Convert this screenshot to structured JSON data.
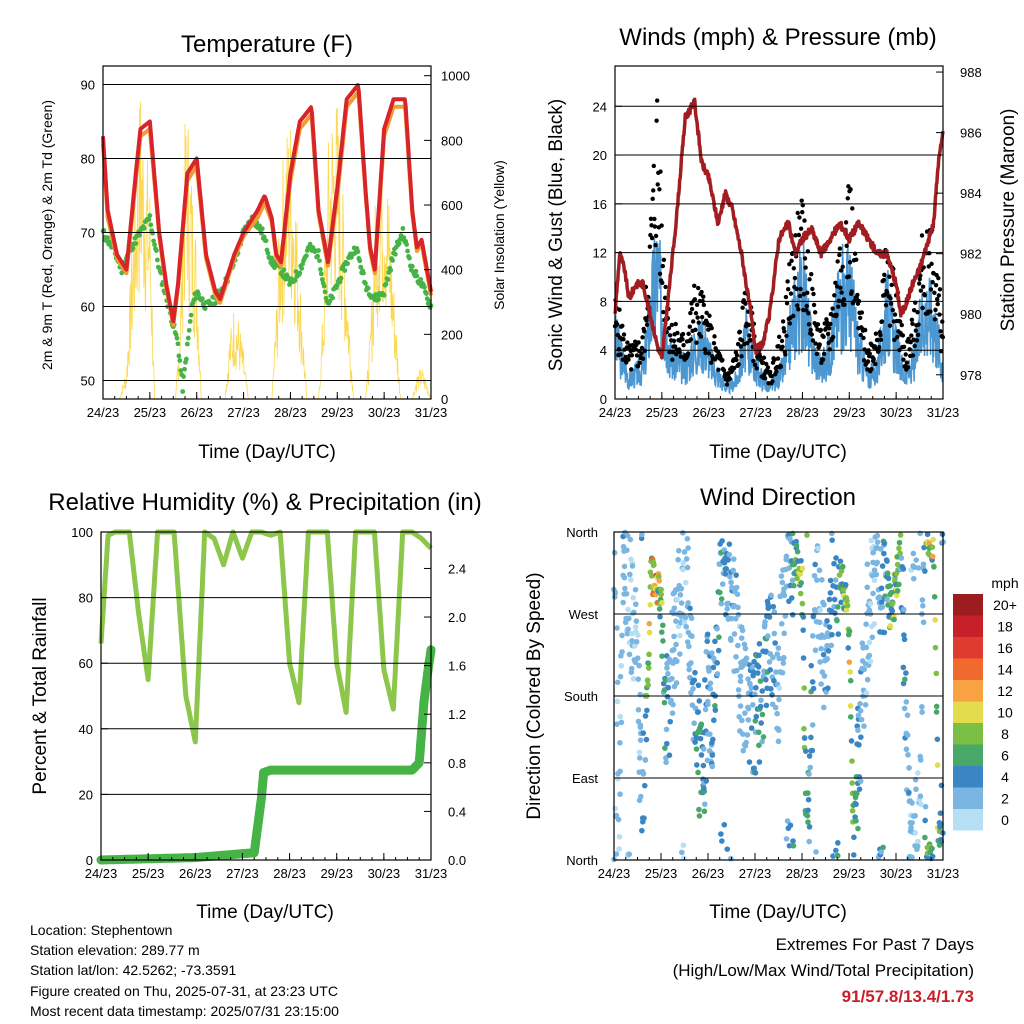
{
  "colors": {
    "temp2m": "#d9252a",
    "temp9m": "#f39a33",
    "dewpoint": "#46b346",
    "solar": "#fcd850",
    "wind": "#4b97d2",
    "gust": "#000000",
    "pressure": "#a11d21",
    "rh": "#8cc64b",
    "rain": "#46b346",
    "accent": "#c8202a"
  },
  "time_ticks": [
    "24/23",
    "25/23",
    "26/23",
    "27/23",
    "28/23",
    "29/23",
    "30/23",
    "31/23"
  ],
  "chart_data": [
    {
      "type": "line",
      "title": "Temperature (F)",
      "xlabel": "Time (Day/UTC)",
      "ylabel": "2m & 9m T (Red, Orange) & 2m Td (Green)",
      "y2label": "Solar Insolation (Yellow)",
      "x": [
        "24/23",
        "25/23",
        "26/23",
        "27/23",
        "28/23",
        "29/23",
        "30/23",
        "31/23"
      ],
      "ylim": [
        47.5,
        92.5
      ],
      "y2lim": [
        0,
        1030
      ],
      "yticks": [
        50,
        60,
        70,
        80,
        90
      ],
      "y2ticks": [
        0,
        200,
        400,
        600,
        800,
        1000
      ],
      "grid": true,
      "series": [
        {
          "name": "2m T",
          "x": [
            0,
            0.1,
            0.3,
            0.5,
            0.7,
            0.8,
            1.0,
            1.2,
            1.35,
            1.5,
            1.6,
            1.8,
            2.0,
            2.2,
            2.4,
            2.5,
            2.6,
            2.8,
            3.0,
            3.3,
            3.45,
            3.6,
            3.7,
            3.8,
            4.0,
            4.2,
            4.45,
            4.6,
            4.8,
            5.0,
            5.2,
            5.45,
            5.6,
            5.7,
            5.8,
            6.0,
            6.2,
            6.45,
            6.6,
            6.7,
            6.8,
            7.0
          ],
          "values": [
            83,
            73,
            67,
            65,
            78,
            84,
            85,
            70,
            63,
            58,
            63,
            78,
            80,
            67,
            62,
            61,
            63,
            67,
            70,
            73,
            75,
            72,
            67,
            66,
            78,
            85,
            87,
            73,
            66,
            76,
            88,
            90,
            76,
            68,
            65,
            84,
            88,
            88,
            73,
            68,
            69,
            62
          ]
        },
        {
          "name": "9m T",
          "x": [
            0,
            0.1,
            0.3,
            0.5,
            0.7,
            0.8,
            1.0,
            1.2,
            1.35,
            1.5,
            1.6,
            1.8,
            2.0,
            2.2,
            2.4,
            2.5,
            2.6,
            2.8,
            3.0,
            3.3,
            3.45,
            3.6,
            3.7,
            3.8,
            4.0,
            4.2,
            4.45,
            4.6,
            4.8,
            5.0,
            5.2,
            5.45,
            5.6,
            5.7,
            5.8,
            6.0,
            6.2,
            6.45,
            6.6,
            6.7,
            6.8,
            7.0
          ],
          "values": [
            82,
            72,
            66.5,
            64.5,
            77,
            83,
            84,
            69.5,
            62.5,
            57.5,
            62.5,
            77,
            79,
            66.5,
            61.5,
            60.5,
            62.5,
            66.5,
            69.5,
            72,
            74,
            71.5,
            66.5,
            65.5,
            77,
            84,
            86,
            72.5,
            65.5,
            75,
            87,
            89,
            75.5,
            67.5,
            64.5,
            83,
            87,
            87,
            72.5,
            67.5,
            68.5,
            61.5
          ]
        },
        {
          "name": "2m Td",
          "x": [
            0,
            0.2,
            0.4,
            0.6,
            0.8,
            1.0,
            1.2,
            1.4,
            1.6,
            1.7,
            1.9,
            2.0,
            2.2,
            2.4,
            2.6,
            2.8,
            3.0,
            3.2,
            3.4,
            3.6,
            3.8,
            4.0,
            4.2,
            4.4,
            4.6,
            4.8,
            5.0,
            5.2,
            5.4,
            5.6,
            5.8,
            6.0,
            6.2,
            6.4,
            6.6,
            6.8,
            7.0
          ],
          "values": [
            70,
            68,
            65,
            68,
            70,
            72,
            65,
            60,
            55,
            49,
            60,
            62,
            60,
            61,
            63,
            66,
            70,
            72,
            70,
            66,
            65,
            63,
            65,
            68,
            67,
            60,
            63,
            66,
            68,
            63,
            61,
            62,
            67,
            70,
            65,
            63,
            60
          ]
        },
        {
          "name": "Solar Insolation",
          "axis": "y2",
          "x": [
            0,
            0.35,
            0.5,
            0.62,
            0.72,
            0.8,
            0.85,
            0.92,
            1.0,
            1.1,
            1.35,
            1.55,
            1.65,
            1.72,
            1.8,
            1.9,
            2.0,
            2.1,
            2.35,
            2.6,
            2.7,
            2.8,
            2.9,
            3.0,
            3.1,
            3.35,
            3.6,
            3.7,
            3.8,
            3.9,
            4.0,
            4.1,
            4.35,
            4.6,
            4.7,
            4.8,
            4.9,
            5.0,
            5.1,
            5.35,
            5.6,
            5.7,
            5.8,
            5.9,
            6.0,
            6.1,
            6.35,
            6.6,
            6.7,
            6.8,
            6.9,
            7.0
          ],
          "values": [
            0,
            0,
            100,
            500,
            800,
            1000,
            900,
            800,
            700,
            0,
            0,
            0,
            300,
            800,
            950,
            700,
            500,
            0,
            0,
            0,
            200,
            300,
            250,
            150,
            0,
            0,
            0,
            300,
            700,
            850,
            900,
            700,
            0,
            0,
            300,
            800,
            950,
            950,
            700,
            0,
            0,
            200,
            600,
            800,
            850,
            650,
            0,
            0,
            80,
            100,
            60,
            0
          ]
        }
      ]
    },
    {
      "type": "scatter",
      "title": "Winds (mph) & Pressure (mb)",
      "xlabel": "Time (Day/UTC)",
      "ylabel": "Sonic Wind & Gust (Blue, Black)",
      "y2label": "Station Pressure (Maroon)",
      "x": [
        "24/23",
        "25/23",
        "26/23",
        "27/23",
        "28/23",
        "29/23",
        "30/23",
        "31/23"
      ],
      "ylim": [
        0,
        27.3
      ],
      "y2lim": [
        977.2,
        988.2
      ],
      "yticks": [
        0,
        4,
        8,
        12,
        16,
        20,
        24
      ],
      "y2ticks": [
        978,
        980,
        982,
        984,
        986,
        988
      ],
      "grid": true,
      "series": [
        {
          "name": "Sonic Wind",
          "x": [
            0,
            0.3,
            0.6,
            0.8,
            0.9,
            1.0,
            1.2,
            1.5,
            1.7,
            1.9,
            2.1,
            2.4,
            2.6,
            2.8,
            3.0,
            3.3,
            3.6,
            3.8,
            4.0,
            4.2,
            4.4,
            4.6,
            4.8,
            5.0,
            5.2,
            5.4,
            5.6,
            5.8,
            6.0,
            6.2,
            6.4,
            6.6,
            6.8,
            7.0
          ],
          "values": [
            6,
            2,
            3,
            10,
            13,
            9,
            4,
            3,
            5,
            6,
            3,
            1,
            2,
            6,
            3,
            1,
            3,
            8,
            11,
            5,
            3,
            5,
            10,
            11,
            5,
            2,
            3,
            9,
            5,
            2,
            4,
            9,
            8,
            3
          ]
        },
        {
          "name": "Gust",
          "x": [
            0,
            0.3,
            0.6,
            0.8,
            0.9,
            1.0,
            1.2,
            1.5,
            1.7,
            1.9,
            2.1,
            2.4,
            2.6,
            2.8,
            3.0,
            3.3,
            3.6,
            3.8,
            4.0,
            4.2,
            4.4,
            4.6,
            4.8,
            5.0,
            5.2,
            5.4,
            5.6,
            5.8,
            6.0,
            6.2,
            6.4,
            6.6,
            6.8,
            7.0
          ],
          "values": [
            8,
            4,
            5,
            17,
            25,
            14,
            6,
            5,
            9,
            8,
            5,
            2,
            4,
            9,
            5,
            2,
            6,
            13,
            15,
            9,
            5,
            7,
            13,
            18,
            8,
            4,
            6,
            12,
            9,
            4,
            7,
            14,
            13,
            6
          ]
        },
        {
          "name": "Station Pressure",
          "axis": "y2",
          "x": [
            0,
            0.1,
            0.2,
            0.3,
            0.45,
            0.6,
            0.75,
            0.9,
            1.0,
            1.1,
            1.3,
            1.5,
            1.7,
            1.85,
            2.0,
            2.2,
            2.35,
            2.5,
            2.7,
            2.9,
            3.0,
            3.15,
            3.3,
            3.5,
            3.7,
            3.85,
            4.0,
            4.2,
            4.4,
            4.6,
            4.8,
            5.0,
            5.2,
            5.4,
            5.6,
            5.8,
            6.0,
            6.1,
            6.2,
            6.35,
            6.5,
            6.7,
            6.8,
            6.9,
            7.0
          ],
          "values": [
            980,
            982,
            981.5,
            980.5,
            981,
            981,
            980,
            979,
            978.5,
            980,
            983,
            986.5,
            987,
            985,
            984.5,
            983,
            984,
            983.5,
            982,
            980,
            978.8,
            979,
            980,
            982.5,
            983,
            982,
            982.5,
            982.8,
            982,
            982.5,
            983,
            982.5,
            983,
            982.5,
            982,
            982,
            981,
            980,
            980.3,
            981,
            981.5,
            982.5,
            983,
            985,
            986
          ]
        }
      ]
    },
    {
      "type": "line",
      "title": "Relative Humidity (%) & Precipitation (in)",
      "xlabel": "Time (Day/UTC)",
      "ylabel": "Percent & Total Rainfall",
      "x": [
        "24/23",
        "25/23",
        "26/23",
        "27/23",
        "28/23",
        "29/23",
        "30/23",
        "31/23"
      ],
      "ylim": [
        0,
        100
      ],
      "y2lim": [
        0,
        2.7
      ],
      "yticks": [
        0,
        20,
        40,
        60,
        80,
        100
      ],
      "y2ticks": [
        0.0,
        0.4,
        0.8,
        1.2,
        1.6,
        2.0,
        2.4
      ],
      "grid": true,
      "series": [
        {
          "name": "Relative Humidity",
          "x": [
            0,
            0.15,
            0.3,
            0.6,
            0.8,
            1.0,
            1.2,
            1.3,
            1.45,
            1.55,
            1.65,
            1.8,
            2.0,
            2.2,
            2.4,
            2.6,
            2.8,
            3.0,
            3.2,
            3.4,
            3.6,
            3.8,
            4.0,
            4.2,
            4.4,
            4.6,
            4.8,
            5.0,
            5.2,
            5.4,
            5.6,
            5.8,
            6.0,
            6.2,
            6.4,
            6.6,
            6.8,
            7.0
          ],
          "values": [
            66,
            99,
            100,
            100,
            75,
            55,
            100,
            100,
            100,
            100,
            80,
            50,
            36,
            100,
            98,
            90,
            100,
            92,
            100,
            100,
            99,
            100,
            60,
            48,
            100,
            100,
            100,
            60,
            45,
            100,
            100,
            100,
            58,
            46,
            100,
            100,
            98,
            95
          ]
        },
        {
          "name": "Total Rainfall",
          "axis": "y2",
          "x": [
            0,
            2.0,
            3.25,
            3.4,
            3.45,
            3.6,
            6.0,
            6.6,
            6.75,
            6.85,
            6.95,
            7.0
          ],
          "values": [
            0.0,
            0.02,
            0.06,
            0.5,
            0.72,
            0.74,
            0.74,
            0.74,
            0.8,
            1.3,
            1.6,
            1.73
          ]
        }
      ]
    },
    {
      "type": "scatter",
      "title": "Wind Direction",
      "xlabel": "Time (Day/UTC)",
      "ylabel": "Direction (Colored By Speed)",
      "x": [
        "24/23",
        "25/23",
        "26/23",
        "27/23",
        "28/23",
        "29/23",
        "30/23",
        "31/23"
      ],
      "ylim": [
        0,
        360
      ],
      "yticks": [
        "North",
        "East",
        "South",
        "West",
        "North"
      ],
      "grid": true,
      "legend": {
        "title": "mph",
        "position": "right",
        "labels": [
          "20+",
          "18",
          "16",
          "14",
          "12",
          "10",
          "8",
          "6",
          "4",
          "2",
          "0"
        ],
        "colors": [
          "#9c1c1f",
          "#c8202a",
          "#df3b2f",
          "#f06a2e",
          "#f8a244",
          "#e3dc4d",
          "#7bbf45",
          "#47a868",
          "#3a86c4",
          "#7bb6e2",
          "#b6def5"
        ]
      },
      "series": [
        {
          "name": "Direction",
          "x": [
            0.05,
            0.1,
            0.2,
            0.3,
            0.5,
            0.6,
            0.8,
            0.9,
            1.0,
            1.1,
            1.3,
            1.5,
            1.7,
            1.8,
            1.9,
            2.0,
            2.1,
            2.3,
            2.5,
            2.7,
            2.9,
            3.0,
            3.1,
            3.3,
            3.5,
            3.7,
            3.9,
            4.0,
            4.1,
            4.3,
            4.5,
            4.7,
            4.9,
            5.0,
            5.1,
            5.3,
            5.5,
            5.7,
            5.9,
            6.0,
            6.1,
            6.3,
            6.5,
            6.6,
            6.7,
            6.8,
            6.9,
            7.0
          ],
          "values": [
            350,
            20,
            340,
            310,
            200,
            30,
            320,
            300,
            280,
            150,
            250,
            330,
            180,
            120,
            80,
            200,
            160,
            350,
            300,
            190,
            170,
            160,
            175,
            250,
            200,
            340,
            330,
            300,
            10,
            320,
            200,
            330,
            290,
            250,
            20,
            200,
            310,
            320,
            270,
            300,
            340,
            10,
            30,
            350,
            360,
            340,
            20,
            40
          ],
          "speeds": [
            2,
            1,
            3,
            1,
            2,
            3,
            12,
            14,
            10,
            4,
            2,
            1,
            4,
            6,
            5,
            3,
            4,
            5,
            3,
            2,
            3,
            5,
            6,
            4,
            2,
            3,
            8,
            9,
            7,
            2,
            3,
            4,
            9,
            10,
            8,
            2,
            1,
            4,
            8,
            9,
            6,
            2,
            1,
            4,
            10,
            12,
            8,
            3
          ]
        }
      ]
    }
  ],
  "info": {
    "location": "Location: Stephentown",
    "elevation": "Station elevation: 289.77 m",
    "latlon": "Station lat/lon: 42.5262; -73.3591",
    "created": "Figure created on Thu, 2025-07-31, at 23:23 UTC",
    "recent": "Most recent data timestamp: 2025/07/31 23:15:00"
  },
  "extremes": {
    "title": "Extremes For Past 7 Days",
    "subtitle": "(High/Low/Max Wind/Total Precipitation)",
    "values": "91/57.8/13.4/1.73"
  }
}
